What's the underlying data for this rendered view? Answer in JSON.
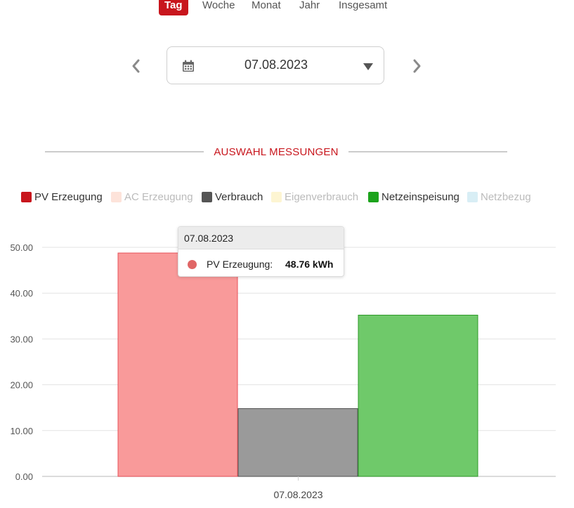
{
  "tabs": [
    {
      "label": "Tag",
      "active": true
    },
    {
      "label": "Woche",
      "active": false
    },
    {
      "label": "Monat",
      "active": false
    },
    {
      "label": "Jahr",
      "active": false
    },
    {
      "label": "Insgesamt",
      "active": false
    }
  ],
  "date_picker": {
    "value": "07.08.2023",
    "icon": "calendar-icon"
  },
  "section": {
    "title": "AUSWAHL MESSUNGEN"
  },
  "legend": [
    {
      "label": "PV Erzeugung",
      "color": "#c8161d",
      "enabled": true
    },
    {
      "label": "AC Erzeugung",
      "color": "#fde3da",
      "enabled": false
    },
    {
      "label": "Verbrauch",
      "color": "#555555",
      "enabled": true
    },
    {
      "label": "Eigenverbrauch",
      "color": "#fdf5d2",
      "enabled": false
    },
    {
      "label": "Netzeinspeisung",
      "color": "#1ca31c",
      "enabled": true
    },
    {
      "label": "Netzbezug",
      "color": "#d8eef5",
      "enabled": false
    }
  ],
  "tooltip": {
    "title": "07.08.2023",
    "label": "PV Erzeugung:",
    "value": "48.76 kWh",
    "dot_color": "#e06666"
  },
  "chart_data": {
    "type": "bar",
    "categories": [
      "07.08.2023"
    ],
    "series": [
      {
        "name": "PV Erzeugung",
        "values": [
          48.76
        ],
        "color": "#f99a9a",
        "stroke": "#e8525a"
      },
      {
        "name": "Verbrauch",
        "values": [
          14.8
        ],
        "color": "#9a9a9a",
        "stroke": "#555555"
      },
      {
        "name": "Netzeinspeisung",
        "values": [
          35.2
        ],
        "color": "#6fc96a",
        "stroke": "#2f9a2a"
      }
    ],
    "yticks": [
      "0.00",
      "10.00",
      "20.00",
      "30.00",
      "40.00",
      "50.00"
    ],
    "ylim": [
      0,
      50
    ],
    "grid": true
  }
}
